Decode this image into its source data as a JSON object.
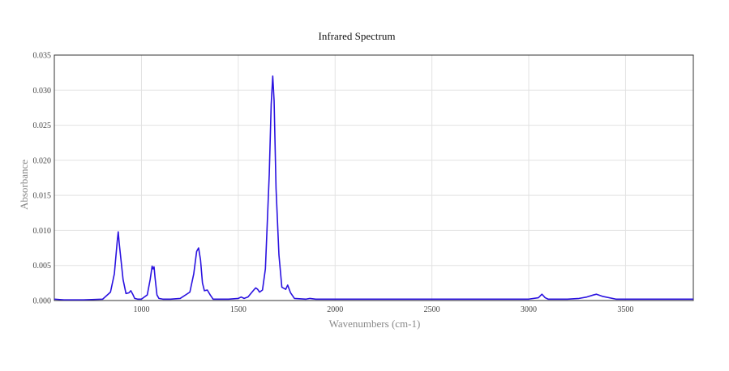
{
  "chart_data": {
    "type": "line",
    "title": "Infrared Spectrum",
    "xlabel": "Wavenumbers (cm-1)",
    "ylabel": "Absorbance",
    "xlim": [
      550,
      3850
    ],
    "ylim": [
      0,
      0.035
    ],
    "x_ticks": [
      1000,
      1500,
      2000,
      2500,
      3000,
      3500
    ],
    "y_ticks": [
      "0.000",
      "0.005",
      "0.010",
      "0.015",
      "0.020",
      "0.025",
      "0.030",
      "0.035"
    ],
    "grid": true,
    "legend": "none",
    "series": [
      {
        "color": "#2a12e0",
        "x": [
          550,
          600,
          700,
          800,
          840,
          860,
          875,
          880,
          885,
          895,
          905,
          920,
          935,
          945,
          955,
          965,
          980,
          1000,
          1030,
          1045,
          1055,
          1060,
          1065,
          1070,
          1080,
          1090,
          1110,
          1150,
          1200,
          1250,
          1270,
          1285,
          1295,
          1305,
          1315,
          1325,
          1340,
          1355,
          1370,
          1400,
          1450,
          1500,
          1515,
          1530,
          1550,
          1580,
          1590,
          1600,
          1610,
          1625,
          1640,
          1660,
          1670,
          1678,
          1685,
          1695,
          1710,
          1725,
          1745,
          1755,
          1770,
          1790,
          1850,
          1870,
          1900,
          2000,
          2500,
          2900,
          3000,
          3050,
          3068,
          3085,
          3100,
          3200,
          3260,
          3300,
          3335,
          3350,
          3380,
          3450,
          3600,
          3850
        ],
        "y": [
          0.0002,
          0.0001,
          0.0001,
          0.0002,
          0.0012,
          0.0038,
          0.0085,
          0.0098,
          0.0082,
          0.0056,
          0.003,
          0.001,
          0.0011,
          0.0014,
          0.0009,
          0.0003,
          0.0002,
          0.0002,
          0.0008,
          0.003,
          0.0049,
          0.0045,
          0.0048,
          0.0033,
          0.0008,
          0.0003,
          0.0002,
          0.0002,
          0.0003,
          0.0012,
          0.0038,
          0.007,
          0.0075,
          0.0058,
          0.0025,
          0.0014,
          0.0015,
          0.0008,
          0.0002,
          0.0002,
          0.0002,
          0.0003,
          0.0005,
          0.0003,
          0.0005,
          0.0015,
          0.0018,
          0.0016,
          0.0012,
          0.0015,
          0.0045,
          0.018,
          0.028,
          0.032,
          0.0285,
          0.016,
          0.0065,
          0.0019,
          0.0016,
          0.0022,
          0.0011,
          0.0003,
          0.0002,
          0.0003,
          0.0002,
          0.0002,
          0.0002,
          0.0002,
          0.0002,
          0.0004,
          0.0009,
          0.0004,
          0.0002,
          0.0002,
          0.0003,
          0.0005,
          0.0008,
          0.0009,
          0.0006,
          0.0002,
          0.0002,
          0.0002
        ]
      }
    ]
  }
}
